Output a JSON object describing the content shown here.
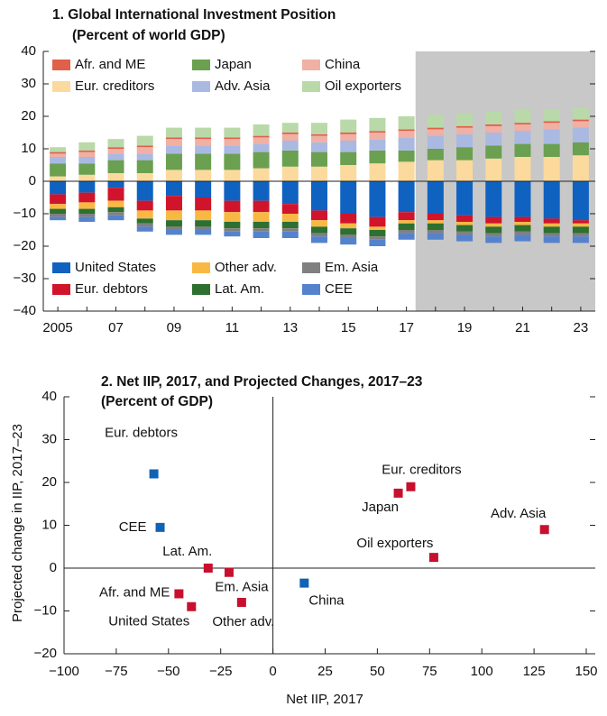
{
  "chart_data": [
    {
      "type": "bar",
      "stacked": true,
      "title": "1. Global International Investment Position",
      "subtitle": "(Percent of world GDP)",
      "categories": [
        "2005",
        null,
        "07",
        null,
        "09",
        null,
        "11",
        null,
        "13",
        null,
        "15",
        null,
        "17",
        null,
        "19",
        null,
        "21",
        null,
        "23"
      ],
      "series": [
        {
          "name": "Afr. and ME",
          "color": "#e0604a",
          "values": [
            0.5,
            0.5,
            0.5,
            0.5,
            0.5,
            0.5,
            0.5,
            0.5,
            0.5,
            0.5,
            0.5,
            0.5,
            0.5,
            0.5,
            0.5,
            0.5,
            0.5,
            0.5,
            0.5
          ]
        },
        {
          "name": "Japan",
          "color": "#6aa050",
          "values": [
            4,
            3.5,
            4,
            4,
            5,
            5,
            5,
            5,
            5,
            4.5,
            4,
            4,
            3.5,
            3.5,
            4,
            4,
            4,
            4,
            4
          ]
        },
        {
          "name": "China",
          "color": "#f0b0a4",
          "values": [
            1,
            1.5,
            1.5,
            2,
            2,
            2,
            2,
            2,
            2,
            2,
            2,
            2,
            2,
            2,
            2,
            2,
            2,
            2,
            2
          ]
        },
        {
          "name": "Eur. creditors",
          "color": "#fcd99c",
          "values": [
            1.5,
            2,
            2.5,
            2.5,
            3.5,
            3.5,
            3.5,
            4,
            4.5,
            4.5,
            5,
            5.5,
            6,
            6.5,
            6.5,
            7,
            7.5,
            7.5,
            8
          ]
        },
        {
          "name": "Adv. Asia",
          "color": "#a9b9e2",
          "values": [
            2,
            2,
            2,
            2,
            2.5,
            2.5,
            2.5,
            2.5,
            3,
            3,
            3.5,
            3.5,
            4,
            4,
            4,
            4,
            4,
            4.5,
            4.5
          ]
        },
        {
          "name": "Oil exporters",
          "color": "#b9d9a9",
          "values": [
            1.5,
            2.5,
            2.5,
            3,
            3,
            3,
            3,
            3.5,
            3,
            3.5,
            4,
            4,
            4,
            4,
            4,
            4,
            4,
            3.5,
            3.5
          ]
        },
        {
          "name": "United States",
          "color": "#0f62c0",
          "values": [
            -4,
            -3.5,
            -2,
            -6,
            -4.5,
            -5,
            -6,
            -6,
            -7,
            -9,
            -10,
            -11,
            -9.5,
            -10,
            -10.5,
            -11,
            -11,
            -11.5,
            -12
          ]
        },
        {
          "name": "Other adv.",
          "color": "#f9b844",
          "values": [
            -1.5,
            -2,
            -2,
            -2.5,
            -3,
            -3,
            -3,
            -3,
            -2.5,
            -2,
            -1.5,
            -1,
            -1,
            -1,
            -1,
            -1,
            -1,
            -1,
            -1
          ]
        },
        {
          "name": "Em. Asia",
          "color": "#808080",
          "values": [
            -1,
            -1,
            -1,
            -1,
            -1,
            -1,
            -1,
            -1,
            -1,
            -1,
            -1,
            -1,
            -1,
            -1,
            -1,
            -1,
            -1,
            -1,
            -1
          ]
        },
        {
          "name": "Eur. debtors",
          "color": "#d0142c",
          "values": [
            -3,
            -3,
            -4,
            -3,
            -4.5,
            -4,
            -3.5,
            -3.5,
            -3,
            -3,
            -3,
            -3,
            -2.5,
            -2,
            -2,
            -2,
            -1.5,
            -1.5,
            -1
          ]
        },
        {
          "name": "Lat. Am.",
          "color": "#2d7030",
          "values": [
            -1.5,
            -1.5,
            -1.5,
            -1.5,
            -2,
            -2,
            -2,
            -2,
            -2,
            -2,
            -2,
            -2,
            -2,
            -2,
            -2,
            -2,
            -2,
            -2,
            -2
          ]
        },
        {
          "name": "CEE",
          "color": "#5582cc",
          "values": [
            -1,
            -1.5,
            -1.5,
            -1.5,
            -1.5,
            -1.5,
            -1.5,
            -2,
            -2,
            -2,
            -2,
            -2,
            -2,
            -2,
            -2,
            -2,
            -2,
            -2,
            -2
          ]
        }
      ],
      "ylim": [
        -40,
        40
      ],
      "yticks": [
        {
          "value": -40,
          "label": "−40"
        },
        {
          "value": -30,
          "label": "−30"
        },
        {
          "value": -20,
          "label": "−20"
        },
        {
          "value": -10,
          "label": "−10"
        },
        0,
        10,
        20,
        30,
        40
      ]
    },
    {
      "type": "scatter",
      "title": "2. Net IIP, 2017, and Projected Changes, 2017–23",
      "subtitle": "(Percent of GDP)",
      "x_label": "Net IIP, 2017",
      "y_label": "Projected change in IIP, 2017–23",
      "labels": [
        "Eur. debtors",
        "CEE",
        "Lat. Am.",
        "Em. Asia",
        "Afr. and ME",
        "United States",
        "Other adv.",
        "China",
        "Japan",
        "Eur. creditors",
        "Oil exporters",
        "Adv. Asia"
      ],
      "x": [
        -57,
        -54,
        -31,
        -21,
        -45,
        -39,
        -15,
        15,
        60,
        66,
        77,
        130
      ],
      "y": [
        22,
        9.5,
        0,
        -1,
        -6,
        -9,
        -8,
        -3.5,
        17.5,
        19,
        2.5,
        9
      ],
      "colors": [
        "#1062b4",
        "#1062b4",
        "#c8102e",
        "#c8102e",
        "#c8102e",
        "#c8102e",
        "#c8102e",
        "#1062b4",
        "#c8102e",
        "#c8102e",
        "#c8102e",
        "#c8102e"
      ],
      "xlim": [
        -100,
        150
      ],
      "xticks": [
        {
          "value": -100,
          "label": "−100"
        },
        {
          "value": -75,
          "label": "−75"
        },
        {
          "value": -50,
          "label": "−50"
        },
        {
          "value": -25,
          "label": "−25"
        },
        0,
        25,
        50,
        75,
        100,
        125,
        150
      ],
      "ylim": [
        -20,
        40
      ],
      "yticks": [
        {
          "value": -20,
          "label": "−20"
        },
        {
          "value": -10,
          "label": "−10"
        },
        0,
        10,
        20,
        30,
        40
      ]
    }
  ]
}
